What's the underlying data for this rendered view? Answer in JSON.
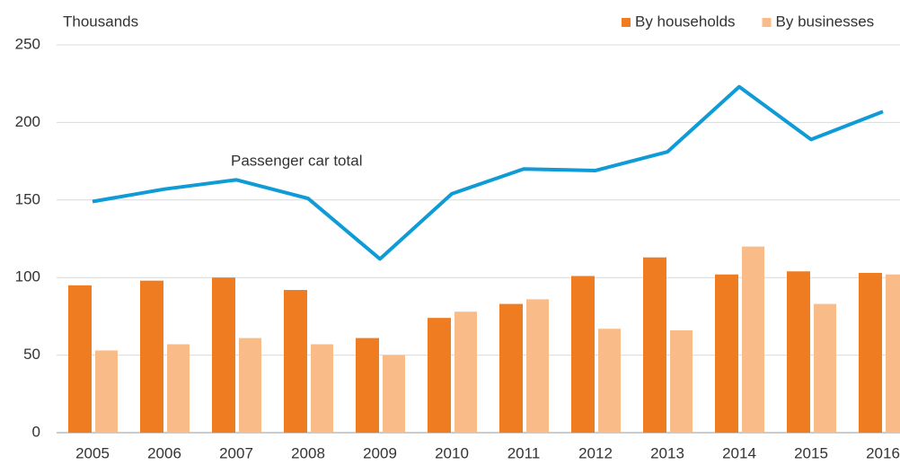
{
  "chart_data": {
    "type": "bar",
    "y_label": "Thousands",
    "categories": [
      "2005",
      "2006",
      "2007",
      "2008",
      "2009",
      "2010",
      "2011",
      "2012",
      "2013",
      "2014",
      "2015",
      "2016"
    ],
    "series": [
      {
        "name": "By households",
        "type": "bar",
        "color": "#f07c22",
        "values": [
          95,
          98,
          100,
          92,
          61,
          74,
          83,
          101,
          113,
          102,
          104,
          103
        ]
      },
      {
        "name": "By businesses",
        "type": "bar",
        "color": "#f9bb87",
        "values": [
          53,
          57,
          61,
          57,
          50,
          78,
          86,
          67,
          66,
          120,
          83,
          102
        ]
      },
      {
        "name": "Passenger car total",
        "type": "line",
        "color": "#0e9bd6",
        "values": [
          149,
          157,
          163,
          151,
          112,
          154,
          170,
          169,
          181,
          223,
          189,
          207
        ]
      }
    ],
    "ylim": [
      0,
      250
    ],
    "yticks": [
      0,
      50,
      100,
      150,
      200,
      250
    ],
    "grid": true,
    "legend": "top-right"
  }
}
